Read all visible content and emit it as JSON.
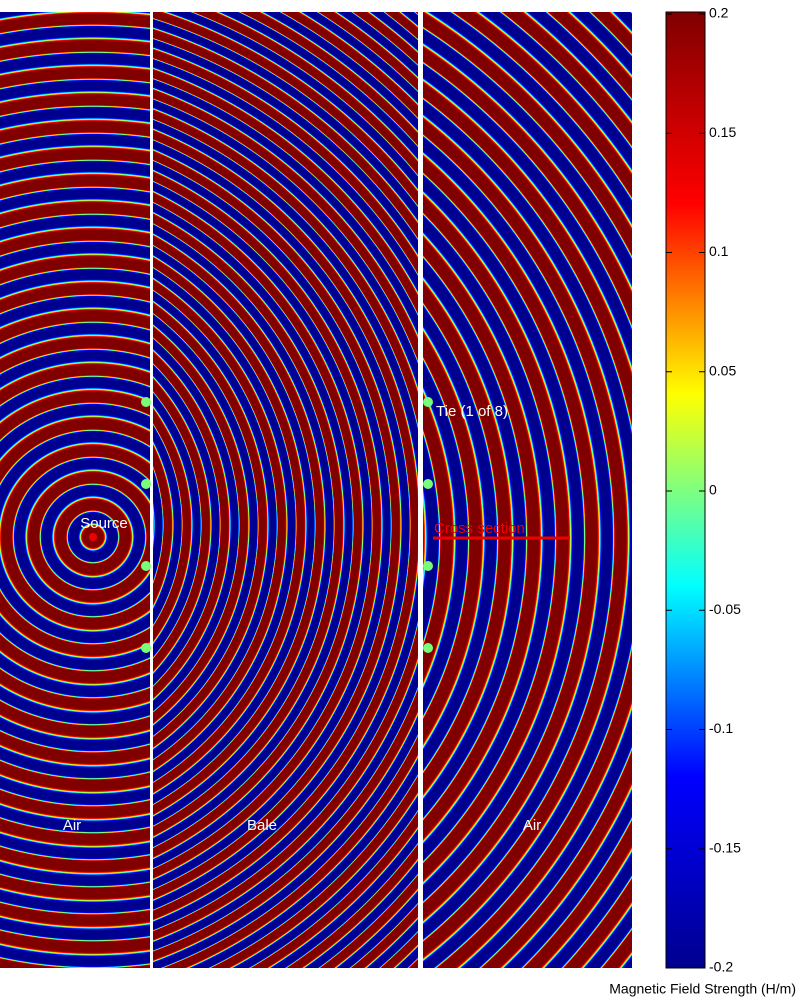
{
  "chart_data": {
    "type": "heatmap",
    "colorbar": {
      "label": "Magnetic Field Strength (H/m)",
      "lim": [
        -0.2,
        0.2
      ],
      "ticks": [
        0.2,
        0.15,
        0.1,
        0.05,
        0,
        -0.05,
        -0.1,
        -0.15,
        -0.2
      ],
      "colormap": [
        "#00008f",
        "#0000ff",
        "#00ffff",
        "#ffff00",
        "#ff0000",
        "#800000"
      ]
    },
    "annotations": {
      "source": "Source",
      "tie": "Tie (1 of 8)",
      "cross_section": "Cross section",
      "regions": [
        "Air",
        "Bale",
        "Air"
      ]
    }
  }
}
